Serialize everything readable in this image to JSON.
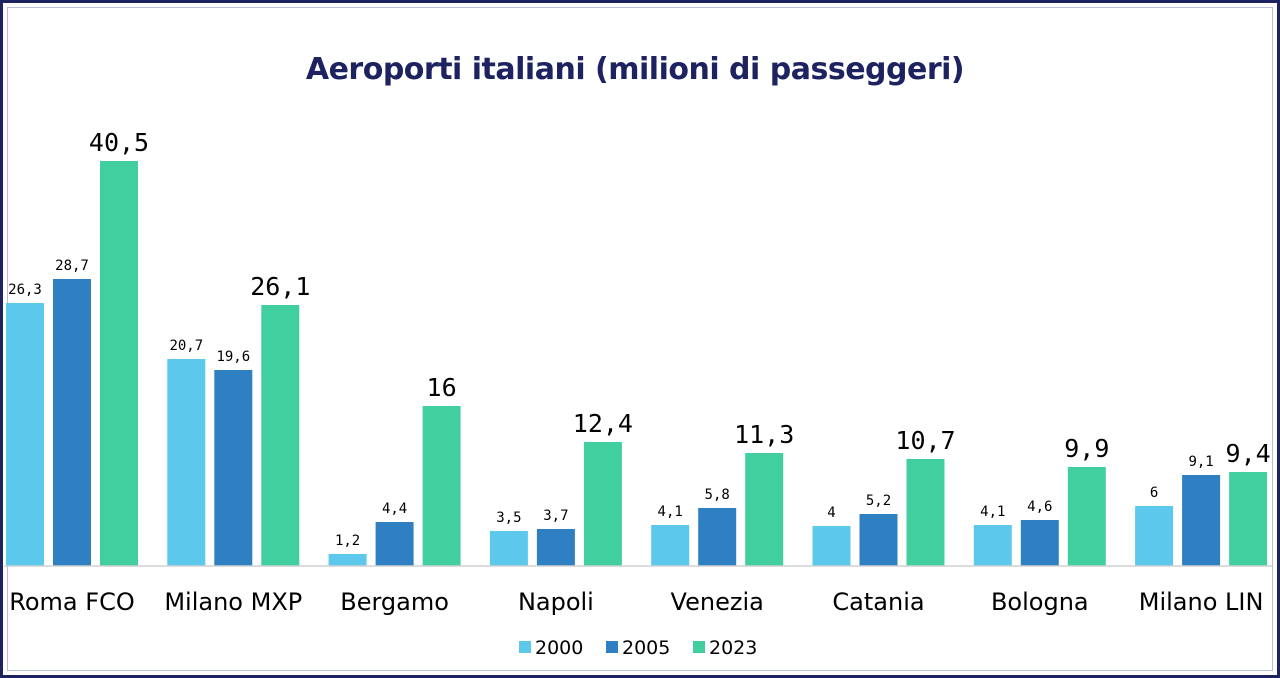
{
  "chart_data": {
    "type": "bar",
    "title": "Aeroporti italiani (milioni di passeggeri)",
    "categories": [
      "Roma FCO",
      "Milano MXP",
      "Bergamo",
      "Napoli",
      "Venezia",
      "Catania",
      "Bologna",
      "Milano LIN"
    ],
    "series": [
      {
        "name": "2000",
        "color": "#5bc8ec",
        "values": [
          26.3,
          20.7,
          1.2,
          3.5,
          4.1,
          4,
          4.1,
          6
        ],
        "labels": [
          "26,3",
          "20,7",
          "1,2",
          "3,5",
          "4,1",
          "4",
          "4,1",
          "6"
        ]
      },
      {
        "name": "2005",
        "color": "#2f80c2",
        "values": [
          28.7,
          19.6,
          4.4,
          3.7,
          5.8,
          5.2,
          4.6,
          9.1
        ],
        "labels": [
          "28,7",
          "19,6",
          "4,4",
          "3,7",
          "5,8",
          "5,2",
          "4,6",
          "9,1"
        ]
      },
      {
        "name": "2023",
        "color": "#42cfa0",
        "values": [
          40.5,
          26.1,
          16,
          12.4,
          11.3,
          10.7,
          9.9,
          9.4
        ],
        "labels": [
          "40,5",
          "26,1",
          "16",
          "12,4",
          "11,3",
          "10,7",
          "9,9",
          "9,4"
        ]
      }
    ],
    "xlabel": "",
    "ylabel": "",
    "ylim": [
      0,
      40.5
    ],
    "grid": false,
    "legend": "bottom-center"
  }
}
